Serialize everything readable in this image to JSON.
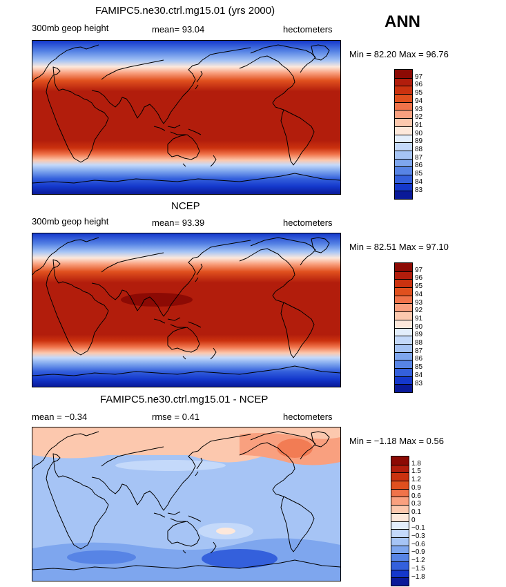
{
  "season_label": "ANN",
  "panels": [
    {
      "title": "FAMIPC5.ne30.ctrl.mg15.01 (yrs 2000)",
      "left_label": "300mb geop height",
      "mid_label": "mean=  93.04",
      "units": "hectometers",
      "minmax": "Min =  82.20 Max =  96.76",
      "colorbar": {
        "labels": [
          "97",
          "96",
          "95",
          "94",
          "93",
          "92",
          "91",
          "90",
          "89",
          "88",
          "87",
          "86",
          "85",
          "84",
          "83"
        ],
        "colors": [
          "#8c0a04",
          "#b21d0c",
          "#cb320f",
          "#e0501e",
          "#f0734a",
          "#f9a07f",
          "#fcc8ae",
          "#fde8db",
          "#e3eefc",
          "#c4d9fa",
          "#a6c4f5",
          "#7ea6ee",
          "#5784e5",
          "#3460dc",
          "#1438cc",
          "#0a1a99"
        ]
      }
    },
    {
      "title": "NCEP",
      "left_label": "300mb geop height",
      "mid_label": "mean=  93.39",
      "units": "hectometers",
      "minmax": "Min =  82.51 Max =  97.10",
      "colorbar": {
        "labels": [
          "97",
          "96",
          "95",
          "94",
          "93",
          "92",
          "91",
          "90",
          "89",
          "88",
          "87",
          "86",
          "85",
          "84",
          "83"
        ],
        "colors": [
          "#8c0a04",
          "#b21d0c",
          "#cb320f",
          "#e0501e",
          "#f0734a",
          "#f9a07f",
          "#fcc8ae",
          "#fde8db",
          "#e3eefc",
          "#c4d9fa",
          "#a6c4f5",
          "#7ea6ee",
          "#5784e5",
          "#3460dc",
          "#1438cc",
          "#0a1a99"
        ]
      }
    },
    {
      "title": "FAMIPC5.ne30.ctrl.mg15.01 - NCEP",
      "left_label": "mean =  −0.34",
      "mid_label": "rmse =   0.41",
      "units": "hectometers",
      "minmax": "Min =  −1.18 Max =   0.56",
      "colorbar": {
        "labels": [
          "1.8",
          "1.5",
          "1.2",
          "0.9",
          "0.6",
          "0.3",
          "0.1",
          "0",
          "−0.1",
          "−0.3",
          "−0.6",
          "−0.9",
          "−1.2",
          "−1.5",
          "−1.8"
        ],
        "colors": [
          "#8c0a04",
          "#b21d0c",
          "#cb320f",
          "#e0501e",
          "#f0734a",
          "#f9a07f",
          "#fcc8ae",
          "#fde8db",
          "#e3eefc",
          "#c4d9fa",
          "#a6c4f5",
          "#7ea6ee",
          "#5784e5",
          "#3460dc",
          "#1438cc",
          "#0a1a99"
        ]
      }
    }
  ]
}
